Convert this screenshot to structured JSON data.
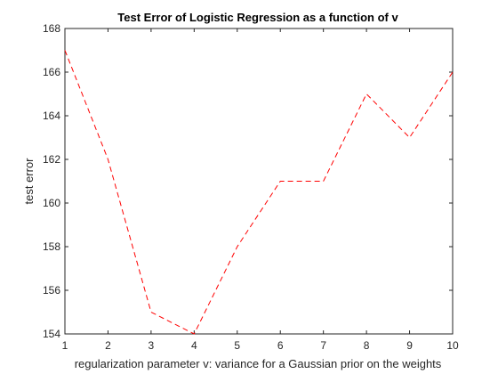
{
  "chart_data": {
    "type": "line",
    "title": "Test Error of Logistic Regression as a function of v",
    "xlabel": "regularization parameter v: variance for a Gaussian prior on the weights",
    "ylabel": "test error",
    "x": [
      1,
      2,
      3,
      4,
      5,
      6,
      7,
      8,
      9,
      10
    ],
    "series": [
      {
        "values": [
          167,
          162,
          155,
          154,
          158,
          161,
          161,
          165,
          163,
          166
        ],
        "color": "#ff0000",
        "line_style": "dashed"
      }
    ],
    "xlim": [
      1,
      10
    ],
    "ylim": [
      154,
      168
    ],
    "xticks": [
      "1",
      "2",
      "3",
      "4",
      "5",
      "6",
      "7",
      "8",
      "9",
      "10"
    ],
    "yticks": [
      "154",
      "156",
      "158",
      "160",
      "162",
      "164",
      "166",
      "168"
    ],
    "grid": false,
    "box": true
  }
}
